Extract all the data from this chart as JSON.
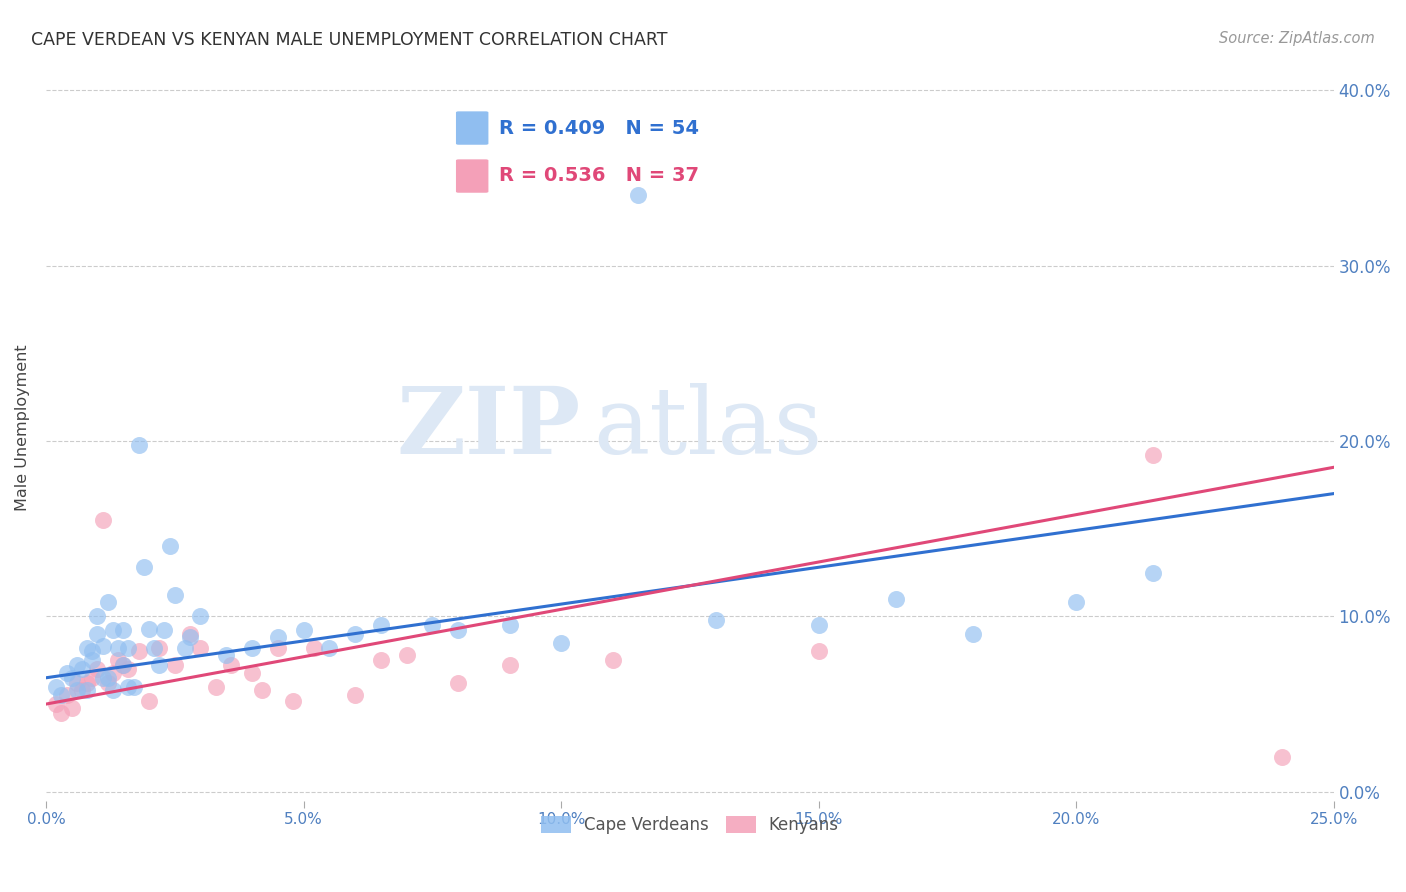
{
  "title": "CAPE VERDEAN VS KENYAN MALE UNEMPLOYMENT CORRELATION CHART",
  "source": "Source: ZipAtlas.com",
  "ylabel": "Male Unemployment",
  "xlim": [
    0.0,
    0.25
  ],
  "ylim": [
    -0.005,
    0.42
  ],
  "xticks": [
    0.0,
    0.05,
    0.1,
    0.15,
    0.2,
    0.25
  ],
  "yticks": [
    0.0,
    0.1,
    0.2,
    0.3,
    0.4
  ],
  "cv_color": "#90BEF0",
  "kn_color": "#F4A0B8",
  "cv_line_color": "#3070D0",
  "kn_line_color": "#E04878",
  "legend_cv_R": "R = 0.409",
  "legend_cv_N": "N = 54",
  "legend_kn_R": "R = 0.536",
  "legend_kn_N": "N = 37",
  "watermark_zip": "ZIP",
  "watermark_atlas": "atlas",
  "watermark_color": "#DDE8F5",
  "cv_x": [
    0.002,
    0.003,
    0.004,
    0.005,
    0.006,
    0.006,
    0.007,
    0.008,
    0.008,
    0.009,
    0.009,
    0.01,
    0.01,
    0.011,
    0.011,
    0.012,
    0.012,
    0.013,
    0.013,
    0.014,
    0.015,
    0.015,
    0.016,
    0.016,
    0.017,
    0.018,
    0.019,
    0.02,
    0.021,
    0.022,
    0.023,
    0.024,
    0.025,
    0.027,
    0.028,
    0.03,
    0.035,
    0.04,
    0.045,
    0.05,
    0.055,
    0.06,
    0.065,
    0.075,
    0.08,
    0.09,
    0.1,
    0.115,
    0.13,
    0.15,
    0.165,
    0.18,
    0.2,
    0.215
  ],
  "cv_y": [
    0.06,
    0.055,
    0.068,
    0.065,
    0.072,
    0.058,
    0.07,
    0.082,
    0.058,
    0.075,
    0.08,
    0.09,
    0.1,
    0.065,
    0.083,
    0.108,
    0.065,
    0.092,
    0.058,
    0.082,
    0.072,
    0.092,
    0.06,
    0.082,
    0.06,
    0.198,
    0.128,
    0.093,
    0.082,
    0.072,
    0.092,
    0.14,
    0.112,
    0.082,
    0.088,
    0.1,
    0.078,
    0.082,
    0.088,
    0.092,
    0.082,
    0.09,
    0.095,
    0.095,
    0.092,
    0.095,
    0.085,
    0.34,
    0.098,
    0.095,
    0.11,
    0.09,
    0.108,
    0.125
  ],
  "kn_x": [
    0.002,
    0.003,
    0.004,
    0.005,
    0.006,
    0.007,
    0.008,
    0.009,
    0.01,
    0.011,
    0.012,
    0.013,
    0.014,
    0.015,
    0.016,
    0.018,
    0.02,
    0.022,
    0.025,
    0.028,
    0.03,
    0.033,
    0.036,
    0.04,
    0.042,
    0.045,
    0.048,
    0.052,
    0.06,
    0.065,
    0.07,
    0.08,
    0.09,
    0.11,
    0.15,
    0.215,
    0.24
  ],
  "kn_y": [
    0.05,
    0.045,
    0.055,
    0.048,
    0.062,
    0.058,
    0.062,
    0.065,
    0.07,
    0.155,
    0.062,
    0.068,
    0.075,
    0.072,
    0.07,
    0.08,
    0.052,
    0.082,
    0.072,
    0.09,
    0.082,
    0.06,
    0.072,
    0.068,
    0.058,
    0.082,
    0.052,
    0.082,
    0.055,
    0.075,
    0.078,
    0.062,
    0.072,
    0.075,
    0.08,
    0.192,
    0.02
  ]
}
